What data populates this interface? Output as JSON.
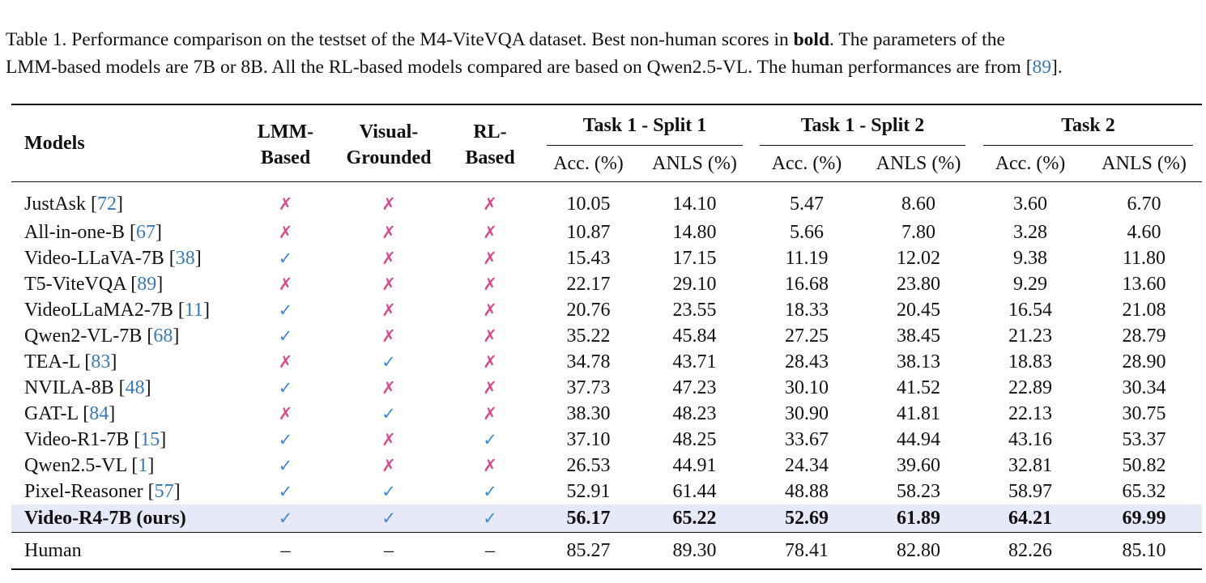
{
  "caption": {
    "line1_parts": [
      "Table 1.  Performance comparison on the testset of the M4-ViteVQA dataset.  Best non-human scores in ",
      "bold",
      ".  The parameters of the"
    ],
    "line2_text": "LMM-based models are 7B or 8B. All the RL-based models compared are based on Qwen2.5-VL. The human performances are from [",
    "line2_cite": "89",
    "line2_end": "]."
  },
  "header": {
    "models": "Models",
    "lmm": [
      "LMM-",
      "Based"
    ],
    "visual": [
      "Visual-",
      "Grounded"
    ],
    "rl": [
      "RL-",
      "Based"
    ],
    "groups": [
      "Task 1 - Split 1",
      "Task 1 - Split 2",
      "Task 2"
    ],
    "subcols": [
      "Acc. (%)",
      "ANLS (%)",
      "Acc. (%)",
      "ANLS (%)",
      "Acc. (%)",
      "ANLS (%)"
    ]
  },
  "colors": {
    "cross": "#d64c8a",
    "check": "#3f8ad0",
    "citation": "#3a78b0",
    "highlight": "#e7e8f8"
  },
  "rows": [
    {
      "model": "JustAsk",
      "cite": "72",
      "flags": [
        "cross",
        "cross",
        "cross"
      ],
      "values": [
        "10.05",
        "14.10",
        "5.47",
        "8.60",
        "3.60",
        "6.70"
      ]
    },
    {
      "model": "All-in-one-B",
      "cite": "67",
      "flags": [
        "cross",
        "cross",
        "cross"
      ],
      "values": [
        "10.87",
        "14.80",
        "5.66",
        "7.80",
        "3.28",
        "4.60"
      ]
    },
    {
      "model": "Video-LLaVA-7B",
      "cite": "38",
      "flags": [
        "check",
        "cross",
        "cross"
      ],
      "values": [
        "15.43",
        "17.15",
        "11.19",
        "12.02",
        "9.38",
        "11.80"
      ]
    },
    {
      "model": "T5-ViteVQA",
      "cite": "89",
      "flags": [
        "cross",
        "cross",
        "cross"
      ],
      "values": [
        "22.17",
        "29.10",
        "16.68",
        "23.80",
        "9.29",
        "13.60"
      ]
    },
    {
      "model": "VideoLLaMA2-7B",
      "cite": "11",
      "flags": [
        "check",
        "cross",
        "cross"
      ],
      "values": [
        "20.76",
        "23.55",
        "18.33",
        "20.45",
        "16.54",
        "21.08"
      ]
    },
    {
      "model": "Qwen2-VL-7B",
      "cite": "68",
      "flags": [
        "check",
        "cross",
        "cross"
      ],
      "values": [
        "35.22",
        "45.84",
        "27.25",
        "38.45",
        "21.23",
        "28.79"
      ]
    },
    {
      "model": "TEA-L",
      "cite": "83",
      "flags": [
        "cross",
        "check",
        "cross"
      ],
      "values": [
        "34.78",
        "43.71",
        "28.43",
        "38.13",
        "18.83",
        "28.90"
      ]
    },
    {
      "model": "NVILA-8B",
      "cite": "48",
      "flags": [
        "check",
        "cross",
        "cross"
      ],
      "values": [
        "37.73",
        "47.23",
        "30.10",
        "41.52",
        "22.89",
        "30.34"
      ]
    },
    {
      "model": "GAT-L",
      "cite": "84",
      "flags": [
        "cross",
        "check",
        "cross"
      ],
      "values": [
        "38.30",
        "48.23",
        "30.90",
        "41.81",
        "22.13",
        "30.75"
      ]
    },
    {
      "model": "Video-R1-7B",
      "cite": "15",
      "flags": [
        "check",
        "cross",
        "check"
      ],
      "values": [
        "37.10",
        "48.25",
        "33.67",
        "44.94",
        "43.16",
        "53.37"
      ]
    },
    {
      "model": "Qwen2.5-VL",
      "cite": "1",
      "flags": [
        "check",
        "cross",
        "cross"
      ],
      "values": [
        "26.53",
        "44.91",
        "24.34",
        "39.60",
        "32.81",
        "50.82"
      ]
    },
    {
      "model": "Pixel-Reasoner",
      "cite": "57",
      "flags": [
        "check",
        "check",
        "check"
      ],
      "values": [
        "52.91",
        "61.44",
        "48.88",
        "58.23",
        "58.97",
        "65.32"
      ]
    },
    {
      "model": "Video-R4-7B (ours)",
      "cite": "",
      "flags": [
        "check",
        "check",
        "check"
      ],
      "values": [
        "56.17",
        "65.22",
        "52.69",
        "61.89",
        "64.21",
        "69.99"
      ],
      "highlight": true
    }
  ],
  "human": {
    "model": "Human",
    "flags": [
      "–",
      "–",
      "–"
    ],
    "values": [
      "85.27",
      "89.30",
      "78.41",
      "82.80",
      "82.26",
      "85.10"
    ]
  }
}
